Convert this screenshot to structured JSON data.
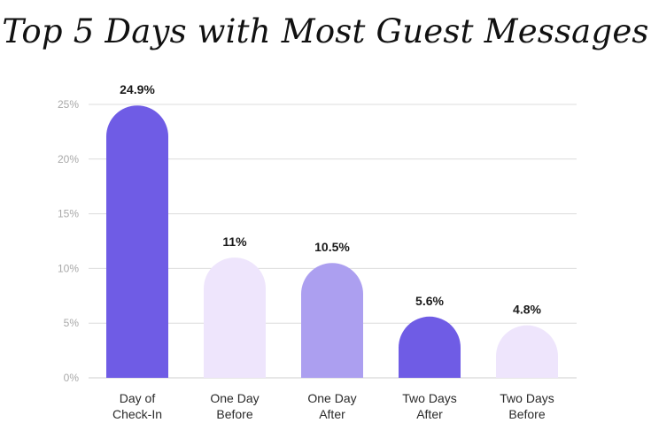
{
  "chart_data": {
    "type": "bar",
    "title": "Top 5 Days with Most Guest Messages",
    "xlabel": "",
    "ylabel": "",
    "categories": [
      [
        "Day of",
        "Check-In"
      ],
      [
        "One Day",
        "Before"
      ],
      [
        "One Day",
        "After"
      ],
      [
        "Two Days",
        "After"
      ],
      [
        "Two Days",
        "Before"
      ]
    ],
    "values": [
      24.9,
      11,
      10.5,
      5.6,
      4.8
    ],
    "value_labels": [
      "24.9%",
      "11%",
      "10.5%",
      "5.6%",
      "4.8%"
    ],
    "ylim": [
      0,
      25
    ],
    "yticks": [
      0,
      5,
      10,
      15,
      20,
      25
    ],
    "ytick_labels": [
      "0%",
      "5%",
      "10%",
      "15%",
      "20%",
      "25%"
    ],
    "grid": true,
    "legend": "none",
    "bar_colors": [
      "#6f5ce5",
      "#eee5fc",
      "#ac9ff0",
      "#6f5ce5",
      "#eee5fc"
    ]
  }
}
